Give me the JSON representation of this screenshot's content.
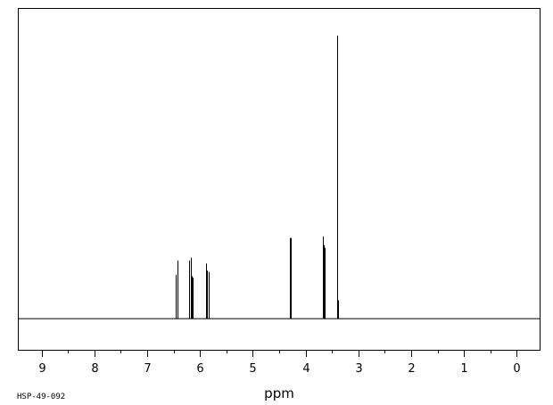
{
  "chart_data": {
    "type": "line",
    "title": "",
    "xlabel": "ppm",
    "ylabel": "",
    "x_reversed": true,
    "xlim": [
      9.45,
      -0.45
    ],
    "ylim": [
      0,
      1.0
    ],
    "grid": false,
    "tick_labels": [
      "9",
      "8",
      "7",
      "6",
      "5",
      "4",
      "3",
      "2",
      "1",
      "0"
    ],
    "tick_values": [
      9,
      8,
      7,
      6,
      5,
      4,
      3,
      2,
      1,
      0
    ],
    "minor_tick_values": [
      8.5,
      7.5,
      6.5,
      5.5,
      4.5,
      3.5,
      2.5,
      1.5,
      0.5
    ],
    "series": [
      {
        "peaks": [
          {
            "ppm": 6.46,
            "intensity": 0.155
          },
          {
            "ppm": 6.43,
            "intensity": 0.205
          },
          {
            "ppm": 6.42,
            "intensity": 0.205
          },
          {
            "ppm": 6.2,
            "intensity": 0.205
          },
          {
            "ppm": 6.18,
            "intensity": 0.215
          },
          {
            "ppm": 6.16,
            "intensity": 0.15
          },
          {
            "ppm": 6.14,
            "intensity": 0.145
          },
          {
            "ppm": 5.88,
            "intensity": 0.195
          },
          {
            "ppm": 5.86,
            "intensity": 0.17
          },
          {
            "ppm": 5.84,
            "intensity": 0.165
          },
          {
            "ppm": 4.3,
            "intensity": 0.285
          },
          {
            "ppm": 4.28,
            "intensity": 0.285
          },
          {
            "ppm": 3.67,
            "intensity": 0.29
          },
          {
            "ppm": 3.65,
            "intensity": 0.26
          },
          {
            "ppm": 3.63,
            "intensity": 0.25
          },
          {
            "ppm": 3.4,
            "intensity": 1.0
          },
          {
            "ppm": 3.38,
            "intensity": 0.065
          }
        ]
      }
    ]
  },
  "sample_id": "HSP-49-092"
}
